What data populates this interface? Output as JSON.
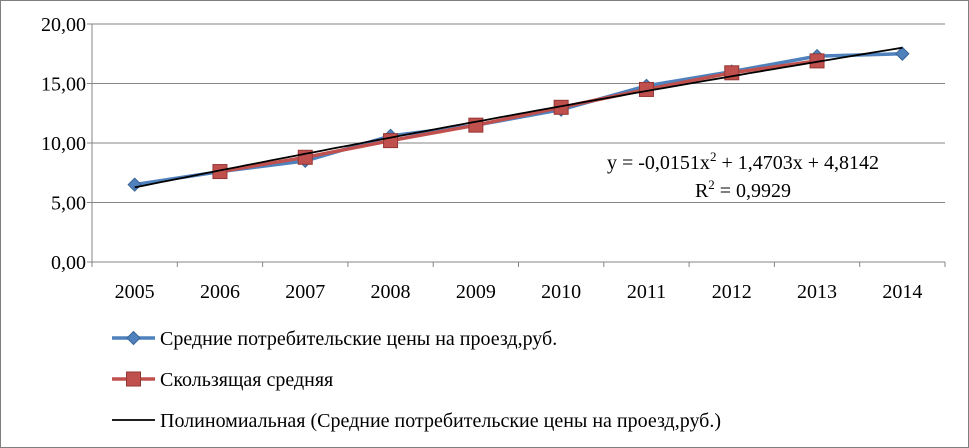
{
  "chart_data": {
    "type": "line",
    "categories": [
      "2005",
      "2006",
      "2007",
      "2008",
      "2009",
      "2010",
      "2011",
      "2012",
      "2013",
      "2014"
    ],
    "ylim": [
      0,
      20
    ],
    "yticks": [
      "0,00",
      "5,00",
      "10,00",
      "15,00",
      "20,00"
    ],
    "ytick_values": [
      0,
      5,
      10,
      15,
      20
    ],
    "grid": "horizontal",
    "legend_position": "bottom",
    "series": [
      {
        "name": "Средние потребительские цены на проезд,руб.",
        "color": "#4f81bd",
        "marker": "diamond",
        "values": [
          6.5,
          7.6,
          8.5,
          10.6,
          11.5,
          12.8,
          14.8,
          16.0,
          17.3,
          17.5
        ]
      },
      {
        "name": "Скользящая средняя",
        "color": "#c0504d",
        "marker": "square",
        "values": [
          null,
          7.6,
          8.8,
          10.2,
          11.5,
          13.0,
          14.5,
          15.9,
          16.9,
          null
        ]
      },
      {
        "name": "Полиномиальная (Средние потребительские цены на проезд,руб.)",
        "color": "#000000",
        "marker": "none",
        "trend": {
          "a": -0.0151,
          "b": 1.4703,
          "c": 4.8142
        }
      }
    ],
    "annotation": {
      "equation_prefix": "y = -0,0151x",
      "equation_sup": "2",
      "equation_suffix": " + 1,4703x + 4,8142",
      "r2_prefix": "R",
      "r2_sup": "2",
      "r2_suffix": " = 0,9929"
    }
  }
}
